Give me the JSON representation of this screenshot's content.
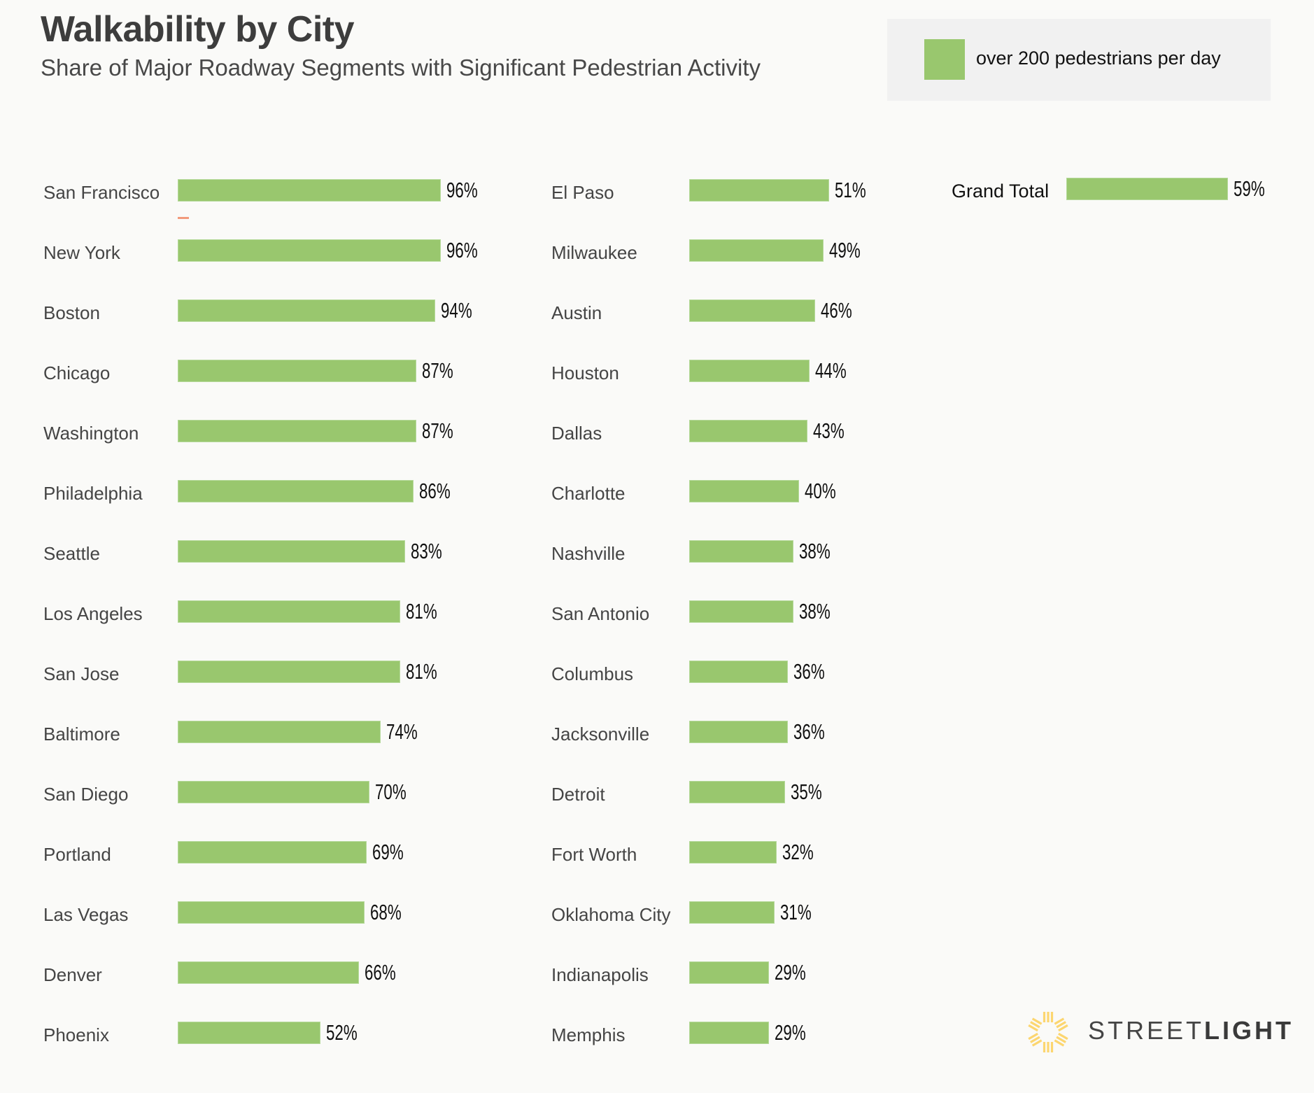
{
  "header": {
    "title": "Walkability by City",
    "subtitle": "Share of Major Roadway Segments with Significant Pedestrian Activity"
  },
  "legend": {
    "label": "over 200 pedestrians per day",
    "color": "#99c76e"
  },
  "logo": {
    "text_light": "STREET",
    "text_bold": "LIGHT",
    "icon": "sun-rays-icon",
    "color": "#fcd670"
  },
  "chart_data": {
    "type": "bar",
    "orientation": "horizontal",
    "title": "Walkability by City",
    "subtitle": "Share of Major Roadway Segments with Significant Pedestrian Activity",
    "xlabel": "",
    "ylabel": "",
    "xlim": [
      0,
      100
    ],
    "unit": "%",
    "grid": false,
    "legend": {
      "position": "top-right",
      "entries": [
        "over 200 pedestrians per day"
      ]
    },
    "series": [
      {
        "name": "over 200 pedestrians per day",
        "color": "#99c76e"
      }
    ],
    "columns": [
      {
        "items": [
          {
            "city": "San Francisco",
            "value": 96,
            "label": "96%"
          },
          {
            "city": "New York",
            "value": 96,
            "label": "96%"
          },
          {
            "city": "Boston",
            "value": 94,
            "label": "94%"
          },
          {
            "city": "Chicago",
            "value": 87,
            "label": "87%"
          },
          {
            "city": "Washington",
            "value": 87,
            "label": "87%"
          },
          {
            "city": "Philadelphia",
            "value": 86,
            "label": "86%"
          },
          {
            "city": "Seattle",
            "value": 83,
            "label": "83%"
          },
          {
            "city": "Los Angeles",
            "value": 81,
            "label": "81%"
          },
          {
            "city": "San Jose",
            "value": 81,
            "label": "81%"
          },
          {
            "city": "Baltimore",
            "value": 74,
            "label": "74%"
          },
          {
            "city": "San Diego",
            "value": 70,
            "label": "70%"
          },
          {
            "city": "Portland",
            "value": 69,
            "label": "69%"
          },
          {
            "city": "Las Vegas",
            "value": 68,
            "label": "68%"
          },
          {
            "city": "Denver",
            "value": 66,
            "label": "66%"
          },
          {
            "city": "Phoenix",
            "value": 52,
            "label": "52%"
          }
        ]
      },
      {
        "items": [
          {
            "city": "El Paso",
            "value": 51,
            "label": "51%"
          },
          {
            "city": "Milwaukee",
            "value": 49,
            "label": "49%"
          },
          {
            "city": "Austin",
            "value": 46,
            "label": "46%"
          },
          {
            "city": "Houston",
            "value": 44,
            "label": "44%"
          },
          {
            "city": "Dallas",
            "value": 43,
            "label": "43%"
          },
          {
            "city": "Charlotte",
            "value": 40,
            "label": "40%"
          },
          {
            "city": "Nashville",
            "value": 38,
            "label": "38%"
          },
          {
            "city": "San Antonio",
            "value": 38,
            "label": "38%"
          },
          {
            "city": "Columbus",
            "value": 36,
            "label": "36%"
          },
          {
            "city": "Jacksonville",
            "value": 36,
            "label": "36%"
          },
          {
            "city": "Detroit",
            "value": 35,
            "label": "35%"
          },
          {
            "city": "Fort Worth",
            "value": 32,
            "label": "32%"
          },
          {
            "city": "Oklahoma City",
            "value": 31,
            "label": "31%"
          },
          {
            "city": "Indianapolis",
            "value": 29,
            "label": "29%"
          },
          {
            "city": "Memphis",
            "value": 29,
            "label": "29%"
          }
        ]
      },
      {
        "items": [
          {
            "city": "Grand Total",
            "value": 59,
            "label": "59%"
          }
        ]
      }
    ]
  }
}
